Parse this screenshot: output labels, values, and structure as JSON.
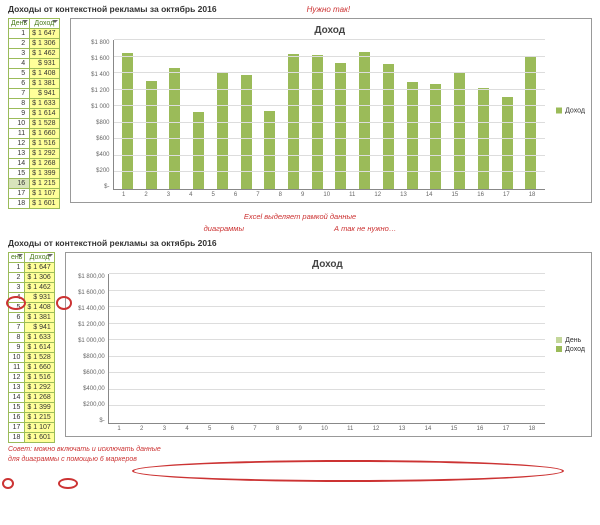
{
  "top": {
    "title": "Доходы от контекстной рекламы за октябрь 2016",
    "note": "Нужно так!",
    "headers": {
      "day": "День",
      "income": "Доход"
    },
    "chart_title": "Доход",
    "legend_label": "Доход",
    "ylabels": [
      "$-",
      "$200",
      "$400",
      "$600",
      "$800",
      "$1 000",
      "$1 200",
      "$1 400",
      "$1 600",
      "$1 800"
    ],
    "ymax": 1800,
    "bar_color": "#9bbb59",
    "grid_color": "#dddddd",
    "rows": [
      {
        "day": 1,
        "txt": "$  1 647",
        "v": 1647
      },
      {
        "day": 2,
        "txt": "$  1 306",
        "v": 1306
      },
      {
        "day": 3,
        "txt": "$  1 462",
        "v": 1462
      },
      {
        "day": 4,
        "txt": "$     931",
        "v": 931
      },
      {
        "day": 5,
        "txt": "$  1 408",
        "v": 1408
      },
      {
        "day": 6,
        "txt": "$  1 381",
        "v": 1381
      },
      {
        "day": 7,
        "txt": "$     941",
        "v": 941
      },
      {
        "day": 8,
        "txt": "$  1 633",
        "v": 1633
      },
      {
        "day": 9,
        "txt": "$  1 614",
        "v": 1614
      },
      {
        "day": 10,
        "txt": "$  1 528",
        "v": 1528
      },
      {
        "day": 11,
        "txt": "$  1 660",
        "v": 1660
      },
      {
        "day": 12,
        "txt": "$  1 516",
        "v": 1516
      },
      {
        "day": 13,
        "txt": "$  1 292",
        "v": 1292
      },
      {
        "day": 14,
        "txt": "$  1 268",
        "v": 1268
      },
      {
        "day": 15,
        "txt": "$  1 399",
        "v": 1399
      },
      {
        "day": 16,
        "txt": "$  1 215",
        "v": 1215
      },
      {
        "day": 17,
        "txt": "$  1 107",
        "v": 1107
      },
      {
        "day": 18,
        "txt": "$  1 601",
        "v": 1601
      }
    ]
  },
  "mid": {
    "note1": "Excel выделяет рамкой данные",
    "note2": "диаграммы",
    "note3": "А так не нужно…"
  },
  "bottom": {
    "title": "Доходы от контекстной рекламы за октябрь 2016",
    "headers": {
      "day": "ень",
      "income": "Доход"
    },
    "chart_title": "Доход",
    "legend_a": "День",
    "legend_b": "Доход",
    "ylabels": [
      "$-",
      "$200,00",
      "$400,00",
      "$600,00",
      "$800,00",
      "$1 000,00",
      "$1 200,00",
      "$1 400,00",
      "$1 600,00",
      "$1 800,00"
    ],
    "ymax": 1800,
    "bar_color_a": "#c4d79b",
    "bar_color_b": "#9bbb59",
    "footer": "Совет: можно включать и исключать данные",
    "footer2": "для диаграммы с помощью 6 маркеров"
  }
}
